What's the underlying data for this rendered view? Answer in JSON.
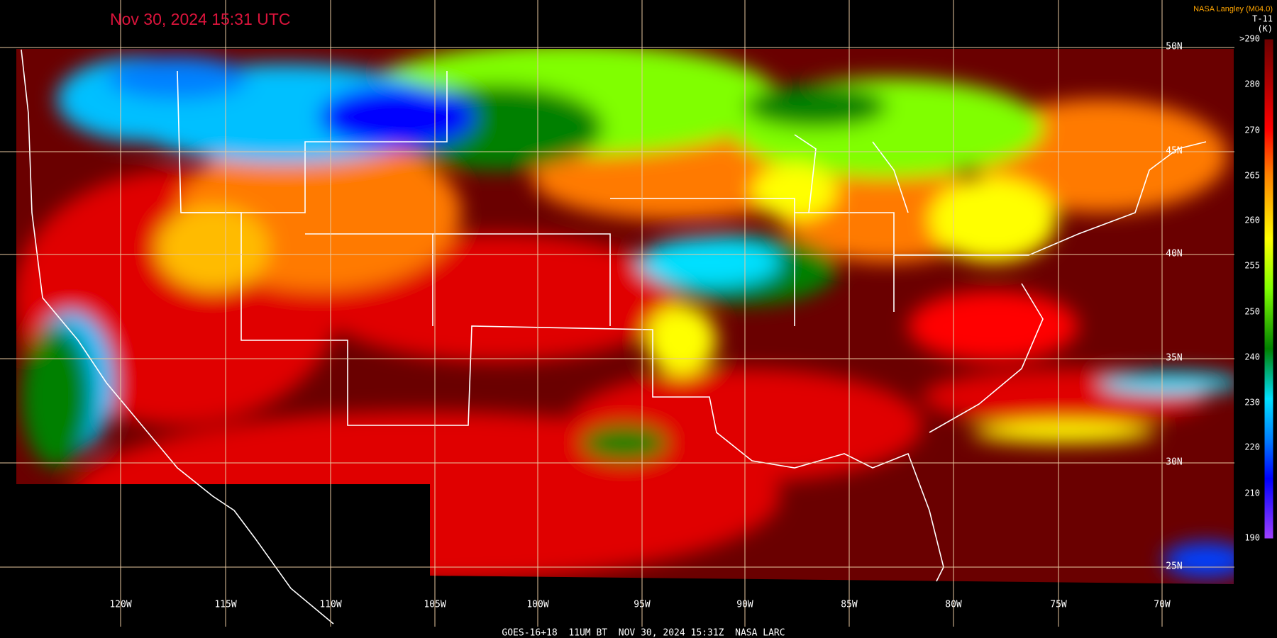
{
  "header": {
    "timestamp": "Nov 30, 2024 15:31 UTC",
    "source": "NASA Langley (M04.0)"
  },
  "legend": {
    "channel": "T-11",
    "unit": "(K)",
    "labels": [
      ">290",
      "280",
      "270",
      "265",
      "260",
      "255",
      "250",
      "240",
      "230",
      "220",
      "210",
      "190"
    ]
  },
  "grid": {
    "longitudes": [
      "120W",
      "115W",
      "110W",
      "105W",
      "100W",
      "95W",
      "90W",
      "85W",
      "80W",
      "75W",
      "70W"
    ],
    "latitudes": [
      "50N",
      "45N",
      "40N",
      "35N",
      "30N",
      "25N"
    ]
  },
  "footer": "GOES-16+18  11UM BT  NOV 30, 2024 15:31Z  NASA LARC"
}
